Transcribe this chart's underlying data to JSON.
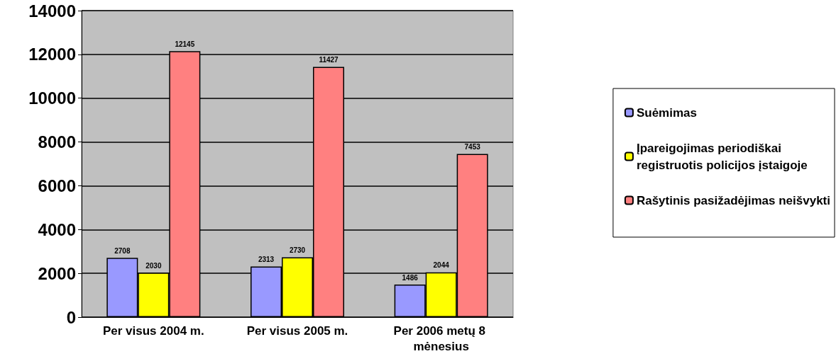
{
  "chart_data": {
    "type": "bar",
    "categories": [
      "Per visus 2004 m.",
      "Per visus 2005 m.",
      "Per 2006 metų 8 mėnesius"
    ],
    "series": [
      {
        "name": "Suėmimas",
        "color": "#9999ff",
        "values": [
          2708,
          2313,
          1486
        ]
      },
      {
        "name": "Įpareigojimas periodiškai registruotis policijos įstaigoje",
        "color": "#ffff00",
        "values": [
          2030,
          2730,
          2044
        ]
      },
      {
        "name": "Rašytinis pasižadėjimas neišvykti",
        "color": "#ff8080",
        "values": [
          12145,
          11427,
          7453
        ]
      }
    ],
    "ylim": [
      0,
      14000
    ],
    "yticks": [
      0,
      2000,
      4000,
      6000,
      8000,
      10000,
      12000,
      14000
    ],
    "grid": "y",
    "legend": "right",
    "data_labels": true
  }
}
